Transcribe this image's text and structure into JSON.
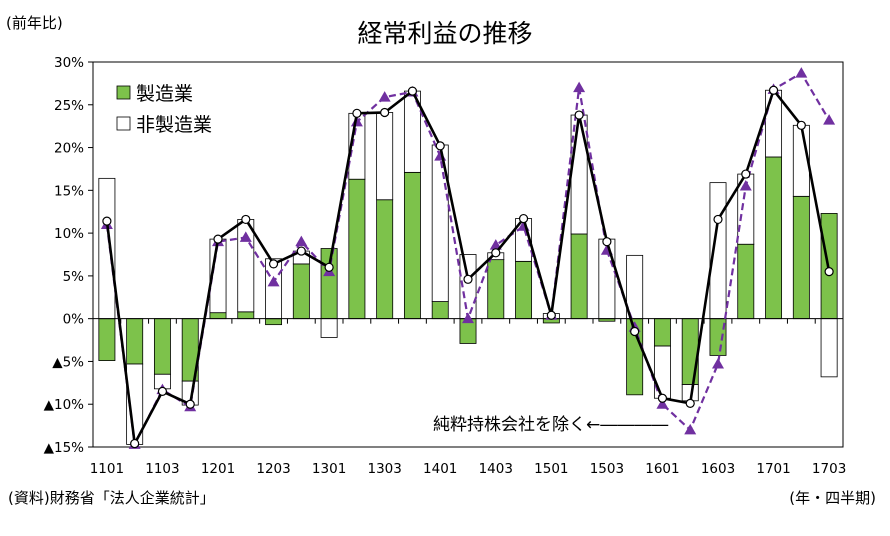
{
  "header": {
    "unit_label": "(前年比)",
    "title": "経常利益の推移"
  },
  "footer": {
    "source": "(資料)財務省「法人企業統計」",
    "x_unit": "(年・四半期)"
  },
  "chart_data": {
    "type": "bar",
    "title": "経常利益の推移",
    "ylabel": "(前年比)",
    "xlabel": "(年・四半期)",
    "ylim": [
      -15,
      30
    ],
    "y_ticks": [
      30,
      25,
      20,
      15,
      10,
      5,
      0,
      -5,
      -10,
      -15
    ],
    "y_tick_labels": [
      "30%",
      "25%",
      "20%",
      "15%",
      "10%",
      "5%",
      "0%",
      "▲5%",
      "▲10%",
      "▲15%"
    ],
    "categories": [
      "1101",
      "1102",
      "1103",
      "1104",
      "1201",
      "1202",
      "1203",
      "1204",
      "1301",
      "1302",
      "1303",
      "1304",
      "1401",
      "1402",
      "1403",
      "1404",
      "1501",
      "1502",
      "1503",
      "1504",
      "1601",
      "1602",
      "1603",
      "1604",
      "1701",
      "1702",
      "1703"
    ],
    "x_tick_labels": [
      "1101",
      "1103",
      "1201",
      "1203",
      "1301",
      "1303",
      "1401",
      "1403",
      "1501",
      "1503",
      "1601",
      "1603",
      "1701",
      "1703"
    ],
    "grid": false,
    "legend_position": "top-left",
    "colors": {
      "manufacturing": "#7dc24b",
      "non_manufacturing": "#ffffff",
      "total": "#000000",
      "excl_holding": "#7030a0"
    },
    "series": [
      {
        "name": "製造業",
        "type": "stacked-bar",
        "values": [
          -4.9,
          -5.3,
          -6.5,
          -7.3,
          0.7,
          0.8,
          -0.7,
          6.4,
          8.2,
          16.3,
          13.9,
          17.1,
          2.0,
          -2.9,
          6.9,
          6.7,
          -0.5,
          9.9,
          -0.3,
          -8.9,
          -3.2,
          -7.7,
          -4.3,
          8.7,
          18.9,
          14.3,
          12.3
        ]
      },
      {
        "name": "非製造業",
        "type": "stacked-bar",
        "values": [
          16.4,
          -9.4,
          -1.7,
          -2.8,
          8.6,
          10.8,
          7.0,
          1.5,
          -2.2,
          7.7,
          10.2,
          9.5,
          18.3,
          7.5,
          0.8,
          5.0,
          0.6,
          13.9,
          9.3,
          7.4,
          -6.1,
          -1.9,
          15.9,
          8.2,
          7.8,
          8.3,
          -6.8
        ]
      },
      {
        "name": "",
        "type": "line",
        "values": [
          11.4,
          -14.6,
          -8.5,
          -10.0,
          9.3,
          11.6,
          6.4,
          7.9,
          6.0,
          24.0,
          24.1,
          26.6,
          20.2,
          4.6,
          7.7,
          11.7,
          0.4,
          23.8,
          9.0,
          -1.5,
          -9.3,
          -9.9,
          11.6,
          16.9,
          26.7,
          22.6,
          5.5
        ]
      },
      {
        "name": "純粋持株会社を除く",
        "type": "dashed-line",
        "values": [
          11.0,
          -14.7,
          -8.3,
          -10.3,
          9.0,
          9.5,
          4.3,
          9.0,
          5.5,
          23.0,
          25.9,
          26.5,
          19.0,
          0.0,
          8.6,
          10.8,
          0.4,
          27.0,
          8.0,
          -1.0,
          -10.0,
          -13.0,
          -5.3,
          15.5,
          26.8,
          28.7,
          23.2
        ]
      }
    ],
    "annotations": [
      {
        "text": "純粋持株会社を除く←――――",
        "series": "dashed-line"
      }
    ]
  }
}
